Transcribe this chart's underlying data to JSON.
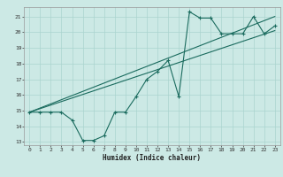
{
  "xlabel": "Humidex (Indice chaleur)",
  "xlim": [
    -0.5,
    23.5
  ],
  "ylim": [
    12.8,
    21.6
  ],
  "yticks": [
    13,
    14,
    15,
    16,
    17,
    18,
    19,
    20,
    21
  ],
  "xticks": [
    0,
    1,
    2,
    3,
    4,
    5,
    6,
    7,
    8,
    9,
    10,
    11,
    12,
    13,
    14,
    15,
    16,
    17,
    18,
    19,
    20,
    21,
    22,
    23
  ],
  "bg_color": "#cce9e5",
  "line_color": "#1a6b5e",
  "grid_color": "#aad4cf",
  "series1_x": [
    0,
    1,
    2,
    3,
    4,
    5,
    6,
    7,
    8,
    9,
    10,
    11,
    12,
    13,
    14,
    15,
    16,
    17,
    18,
    19,
    20,
    21,
    22,
    23
  ],
  "series1_y": [
    14.9,
    14.9,
    14.9,
    14.9,
    14.4,
    13.1,
    13.1,
    13.4,
    14.9,
    14.9,
    15.9,
    17.0,
    17.5,
    18.2,
    15.9,
    21.3,
    20.9,
    20.9,
    19.9,
    19.9,
    19.9,
    21.0,
    19.9,
    20.4
  ],
  "trend1_x": [
    0,
    23
  ],
  "trend1_y": [
    14.9,
    21.0
  ],
  "trend2_x": [
    0,
    23
  ],
  "trend2_y": [
    14.9,
    20.1
  ]
}
